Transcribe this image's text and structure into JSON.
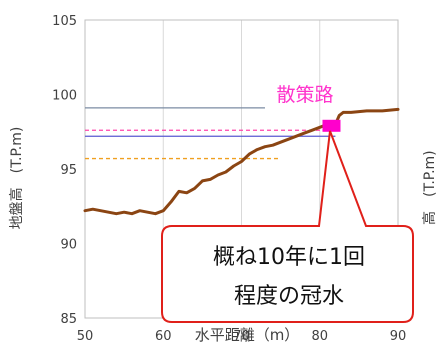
{
  "chart_data": {
    "type": "line",
    "xlabel": "水平距離（m）",
    "ylabel": "地盤高　(T.P.m)",
    "right_ylabel_partial": "高　(T.P.m)",
    "xlim": [
      50,
      90
    ],
    "ylim": [
      85,
      105
    ],
    "xticks": [
      "50",
      "60",
      "70",
      "80",
      "90"
    ],
    "yticks": [
      "85",
      "90",
      "95",
      "100",
      "105"
    ],
    "grid": "vertical",
    "series": [
      {
        "color": "#8b4513",
        "x": [
          50,
          51,
          52,
          53,
          54,
          55,
          56,
          57,
          58,
          59,
          60,
          61,
          62,
          63,
          64,
          65,
          66,
          67,
          68,
          69,
          70,
          71,
          72,
          73,
          74,
          75,
          76,
          77,
          78,
          79,
          80,
          81,
          81.5,
          82,
          82.5,
          83,
          84,
          86,
          88,
          90
        ],
        "y": [
          92.2,
          92.3,
          92.2,
          92.1,
          92.0,
          92.1,
          92.0,
          92.2,
          92.1,
          92.0,
          92.2,
          92.8,
          93.5,
          93.4,
          93.7,
          94.2,
          94.3,
          94.6,
          94.8,
          95.2,
          95.5,
          96.0,
          96.3,
          96.5,
          96.6,
          96.8,
          97.0,
          97.2,
          97.4,
          97.6,
          97.8,
          98.0,
          97.9,
          98.0,
          98.6,
          98.8,
          98.8,
          98.9,
          98.9,
          99.0
        ]
      }
    ],
    "reference_lines": [
      {
        "y": 99.1,
        "x_start": 50,
        "x_end": 73,
        "color": "#7b8ca3",
        "style": "solid"
      },
      {
        "y": 97.6,
        "x_start": 50,
        "x_end": 82,
        "color": "#ff44aa",
        "style": "dashed"
      },
      {
        "y": 97.2,
        "x_start": 50,
        "x_end": 82,
        "color": "#5a5ad0",
        "style": "solid"
      },
      {
        "y": 95.7,
        "x_start": 50,
        "x_end": 75,
        "color": "#f0a020",
        "style": "dashed"
      }
    ],
    "marker": {
      "x": 81.5,
      "y": 97.9,
      "color": "#ff00cc"
    },
    "annotations": {
      "path_label": "散策路",
      "callout_line1": "概ね10年に1回",
      "callout_line2": "程度の冠水",
      "callout_color": "#e0201a"
    }
  }
}
